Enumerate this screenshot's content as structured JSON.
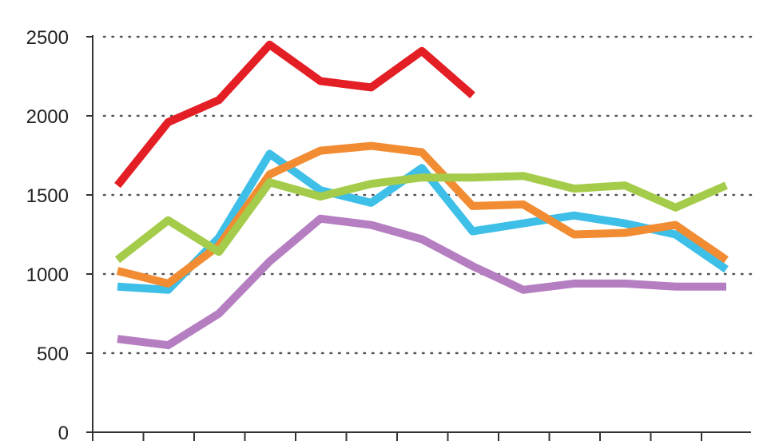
{
  "chart_data": {
    "type": "line",
    "title": "",
    "xlabel": "",
    "ylabel": "",
    "ylim": [
      0,
      2500
    ],
    "yticks": [
      "0",
      "500",
      "1000",
      "1500",
      "2000",
      "2500"
    ],
    "grid": true,
    "x_count": 13,
    "series": [
      {
        "color": "#e31e24",
        "values": [
          1560,
          1960,
          2100,
          2450,
          2220,
          2180,
          2410,
          2130,
          null,
          null,
          null,
          null,
          null
        ]
      },
      {
        "color": "#3ebfe8",
        "values": [
          920,
          900,
          1230,
          1760,
          1530,
          1450,
          1670,
          1270,
          1320,
          1370,
          1320,
          1250,
          1030
        ]
      },
      {
        "color": "#f28c33",
        "values": [
          1020,
          940,
          1180,
          1630,
          1780,
          1810,
          1770,
          1430,
          1440,
          1250,
          1260,
          1310,
          1090
        ]
      },
      {
        "color": "#a4cc4a",
        "values": [
          1090,
          1340,
          1140,
          1580,
          1490,
          1570,
          1610,
          1610,
          1620,
          1540,
          1560,
          1420,
          1560
        ]
      },
      {
        "color": "#b57ec1",
        "values": [
          590,
          550,
          750,
          1080,
          1350,
          1310,
          1220,
          1050,
          900,
          940,
          940,
          920,
          920
        ]
      }
    ]
  }
}
